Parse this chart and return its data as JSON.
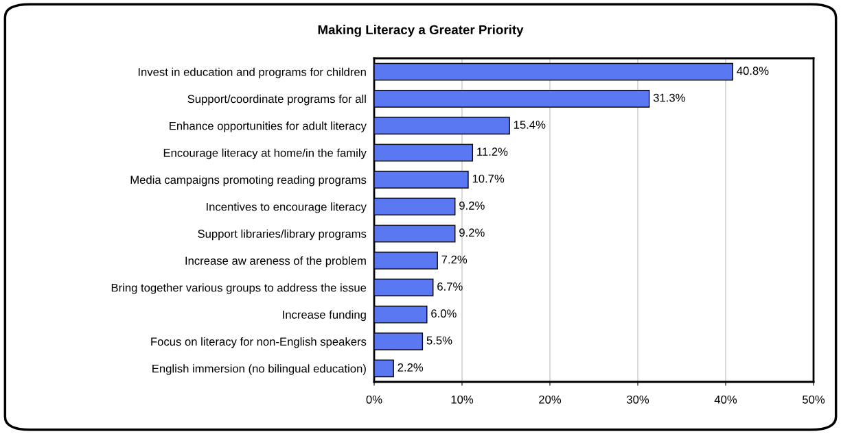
{
  "chart_data": {
    "type": "bar",
    "orientation": "horizontal",
    "title": "Making Literacy a Greater Priority",
    "categories": [
      "Invest in education and programs for children",
      "Support/coordinate programs for all",
      "Enhance opportunities for adult literacy",
      "Encourage literacy at home/in the family",
      "Media campaigns promoting reading programs",
      "Incentives to encourage literacy",
      "Support libraries/library programs",
      "Increase aw areness of the problem",
      "Bring together various groups to address the issue",
      "Increase funding",
      "Focus on literacy for non-English speakers",
      "English immersion (no bilingual education)"
    ],
    "values": [
      40.8,
      31.3,
      15.4,
      11.2,
      10.7,
      9.2,
      9.2,
      7.2,
      6.7,
      6.0,
      5.5,
      2.2
    ],
    "value_labels": [
      "40.8%",
      "31.3%",
      "15.4%",
      "11.2%",
      "10.7%",
      "9.2%",
      "9.2%",
      "7.2%",
      "6.7%",
      "6.0%",
      "5.5%",
      "2.2%"
    ],
    "color": "#5a78f2",
    "xlim": [
      0,
      50
    ],
    "xticks": [
      {
        "value": 0,
        "label": "0%"
      },
      {
        "value": 10,
        "label": "10%"
      },
      {
        "value": 20,
        "label": "20%"
      },
      {
        "value": 30,
        "label": "30%"
      },
      {
        "value": 40,
        "label": "40%"
      },
      {
        "value": 50,
        "label": "50%"
      }
    ],
    "grid": "x",
    "legend": false
  }
}
